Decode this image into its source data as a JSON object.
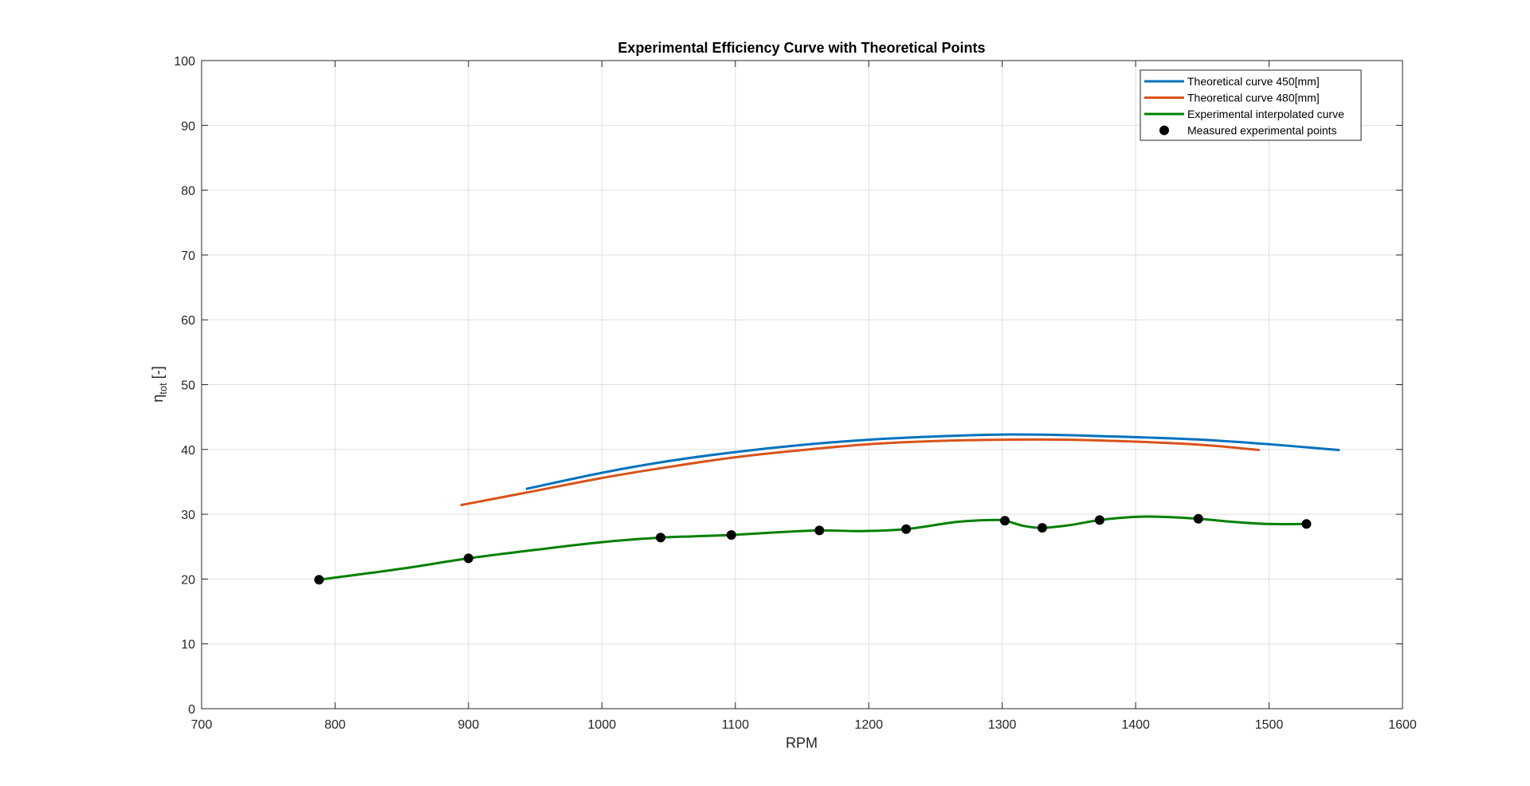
{
  "chart_data": {
    "type": "line",
    "title": "Experimental Efficiency Curve with Theoretical Points",
    "xlabel": "RPM",
    "ylabel": {
      "main": "η",
      "sub": "tot",
      "suffix": " [-]"
    },
    "xlim": [
      700,
      1600
    ],
    "ylim": [
      0,
      100
    ],
    "xticks": [
      700,
      800,
      900,
      1000,
      1100,
      1200,
      1300,
      1400,
      1500,
      1600
    ],
    "yticks": [
      0,
      10,
      20,
      30,
      40,
      50,
      60,
      70,
      80,
      90,
      100
    ],
    "grid": true,
    "legend_position": "top-right",
    "series": [
      {
        "name": "Theoretical curve 450[mm]",
        "kind": "line",
        "color": "#0072bd",
        "x": [
          943,
          1000,
          1050,
          1100,
          1150,
          1200,
          1250,
          1300,
          1350,
          1400,
          1450,
          1500,
          1553
        ],
        "y": [
          33.9,
          36.4,
          38.2,
          39.6,
          40.7,
          41.5,
          42.0,
          42.3,
          42.2,
          41.9,
          41.5,
          40.8,
          39.9
        ]
      },
      {
        "name": "Theoretical curve 480[mm]",
        "kind": "line",
        "color": "#d95319",
        "x": [
          894,
          950,
          1000,
          1050,
          1100,
          1150,
          1200,
          1250,
          1300,
          1350,
          1400,
          1450,
          1493
        ],
        "y": [
          31.4,
          33.6,
          35.6,
          37.3,
          38.8,
          39.9,
          40.8,
          41.3,
          41.5,
          41.5,
          41.2,
          40.7,
          39.9
        ]
      },
      {
        "name": "Experimental interpolated curve",
        "kind": "line",
        "color": "#008000",
        "x": [
          788,
          850,
          900,
          950,
          1000,
          1044,
          1070,
          1097,
          1130,
          1163,
          1195,
          1228,
          1265,
          1290,
          1302,
          1316,
          1330,
          1350,
          1373,
          1400,
          1420,
          1447,
          1475,
          1500,
          1528
        ],
        "y": [
          19.9,
          21.6,
          23.2,
          24.5,
          25.7,
          26.4,
          26.6,
          26.8,
          27.2,
          27.5,
          27.4,
          27.7,
          28.8,
          29.1,
          29.0,
          28.2,
          27.9,
          28.3,
          29.1,
          29.6,
          29.6,
          29.3,
          28.8,
          28.5,
          28.5
        ]
      },
      {
        "name": "Measured experimental points",
        "kind": "scatter",
        "color": "#000000",
        "x": [
          788,
          900,
          1044,
          1097,
          1163,
          1228,
          1302,
          1330,
          1373,
          1447,
          1528
        ],
        "y": [
          19.9,
          23.2,
          26.4,
          26.8,
          27.5,
          27.7,
          29.0,
          27.9,
          29.1,
          29.3,
          28.5
        ]
      }
    ]
  }
}
